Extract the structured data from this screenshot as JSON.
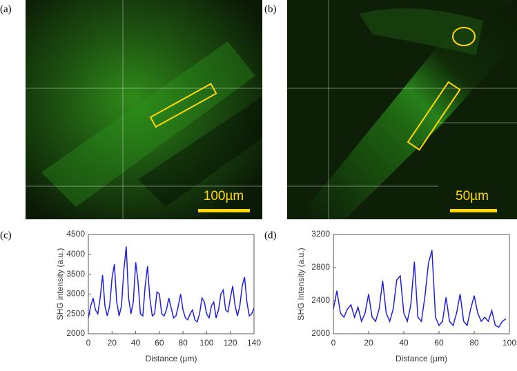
{
  "images": [
    {
      "label": "(a)",
      "scale_bar": "100µm"
    },
    {
      "label": "(b)",
      "scale_bar": "50µm"
    }
  ],
  "chart_data": [
    {
      "type": "line",
      "label": "(c)",
      "xlabel": "Distance (µm)",
      "ylabel": "SHG intensity (a.u.)",
      "x": [
        0,
        2,
        4,
        6,
        8,
        10,
        12,
        14,
        16,
        18,
        20,
        22,
        24,
        26,
        28,
        30,
        32,
        34,
        36,
        38,
        40,
        42,
        44,
        46,
        48,
        50,
        52,
        54,
        56,
        58,
        60,
        62,
        64,
        66,
        68,
        70,
        72,
        74,
        76,
        78,
        80,
        82,
        84,
        86,
        88,
        90,
        92,
        94,
        96,
        98,
        100,
        102,
        104,
        106,
        108,
        110,
        112,
        114,
        116,
        118,
        120,
        122,
        124,
        126,
        128,
        130,
        132,
        134,
        136,
        138,
        140
      ],
      "series": [
        {
          "color": "#1f1fe0",
          "values": [
            2400,
            2700,
            2900,
            2600,
            2500,
            2900,
            3480,
            2700,
            2450,
            2700,
            3400,
            3750,
            2800,
            2450,
            2700,
            3600,
            4200,
            2900,
            2500,
            2800,
            3800,
            3300,
            2500,
            2450,
            3200,
            3700,
            2900,
            2450,
            2500,
            3050,
            3000,
            2500,
            2450,
            2600,
            2900,
            2650,
            2400,
            2450,
            2700,
            3000,
            2600,
            2400,
            2350,
            2500,
            2600,
            2350,
            2300,
            2500,
            2900,
            2800,
            2500,
            2400,
            2700,
            2800,
            2400,
            2600,
            3000,
            3100,
            2600,
            2550,
            2900,
            3200,
            2700,
            2450,
            2700,
            3200,
            3430,
            2800,
            2450,
            2500,
            2650
          ]
        }
      ],
      "xlim": [
        0,
        140
      ],
      "ylim": [
        2000,
        4500
      ],
      "xticks": [
        0,
        20,
        40,
        60,
        80,
        100,
        120,
        140
      ],
      "yticks": [
        2000,
        2500,
        3000,
        3500,
        4000,
        4500
      ]
    },
    {
      "type": "line",
      "label": "(d)",
      "xlabel": "Distance (µm)",
      "ylabel": "SHG Intensity (a.u.)",
      "x": [
        0,
        2,
        4,
        6,
        8,
        10,
        12,
        14,
        16,
        18,
        20,
        22,
        24,
        26,
        28,
        30,
        32,
        34,
        36,
        38,
        40,
        42,
        44,
        46,
        48,
        50,
        52,
        54,
        56,
        58,
        60,
        62,
        64,
        66,
        68,
        70,
        72,
        74,
        76,
        78,
        80,
        82,
        84,
        86,
        88,
        90,
        92,
        94,
        96,
        98
      ],
      "series": [
        {
          "color": "#1f1fe0",
          "values": [
            2300,
            2520,
            2250,
            2200,
            2300,
            2350,
            2200,
            2320,
            2150,
            2250,
            2480,
            2200,
            2150,
            2300,
            2640,
            2250,
            2150,
            2300,
            2650,
            2700,
            2250,
            2150,
            2350,
            2870,
            2200,
            2150,
            2450,
            2850,
            3010,
            2200,
            2100,
            2150,
            2440,
            2150,
            2100,
            2250,
            2480,
            2150,
            2100,
            2300,
            2460,
            2250,
            2150,
            2200,
            2150,
            2280,
            2100,
            2080,
            2150,
            2180
          ]
        }
      ],
      "xlim": [
        0,
        100
      ],
      "ylim": [
        2000,
        3200
      ],
      "xticks": [
        0,
        20,
        40,
        60,
        80,
        100
      ],
      "yticks": [
        2000,
        2400,
        2800,
        3200
      ]
    }
  ]
}
